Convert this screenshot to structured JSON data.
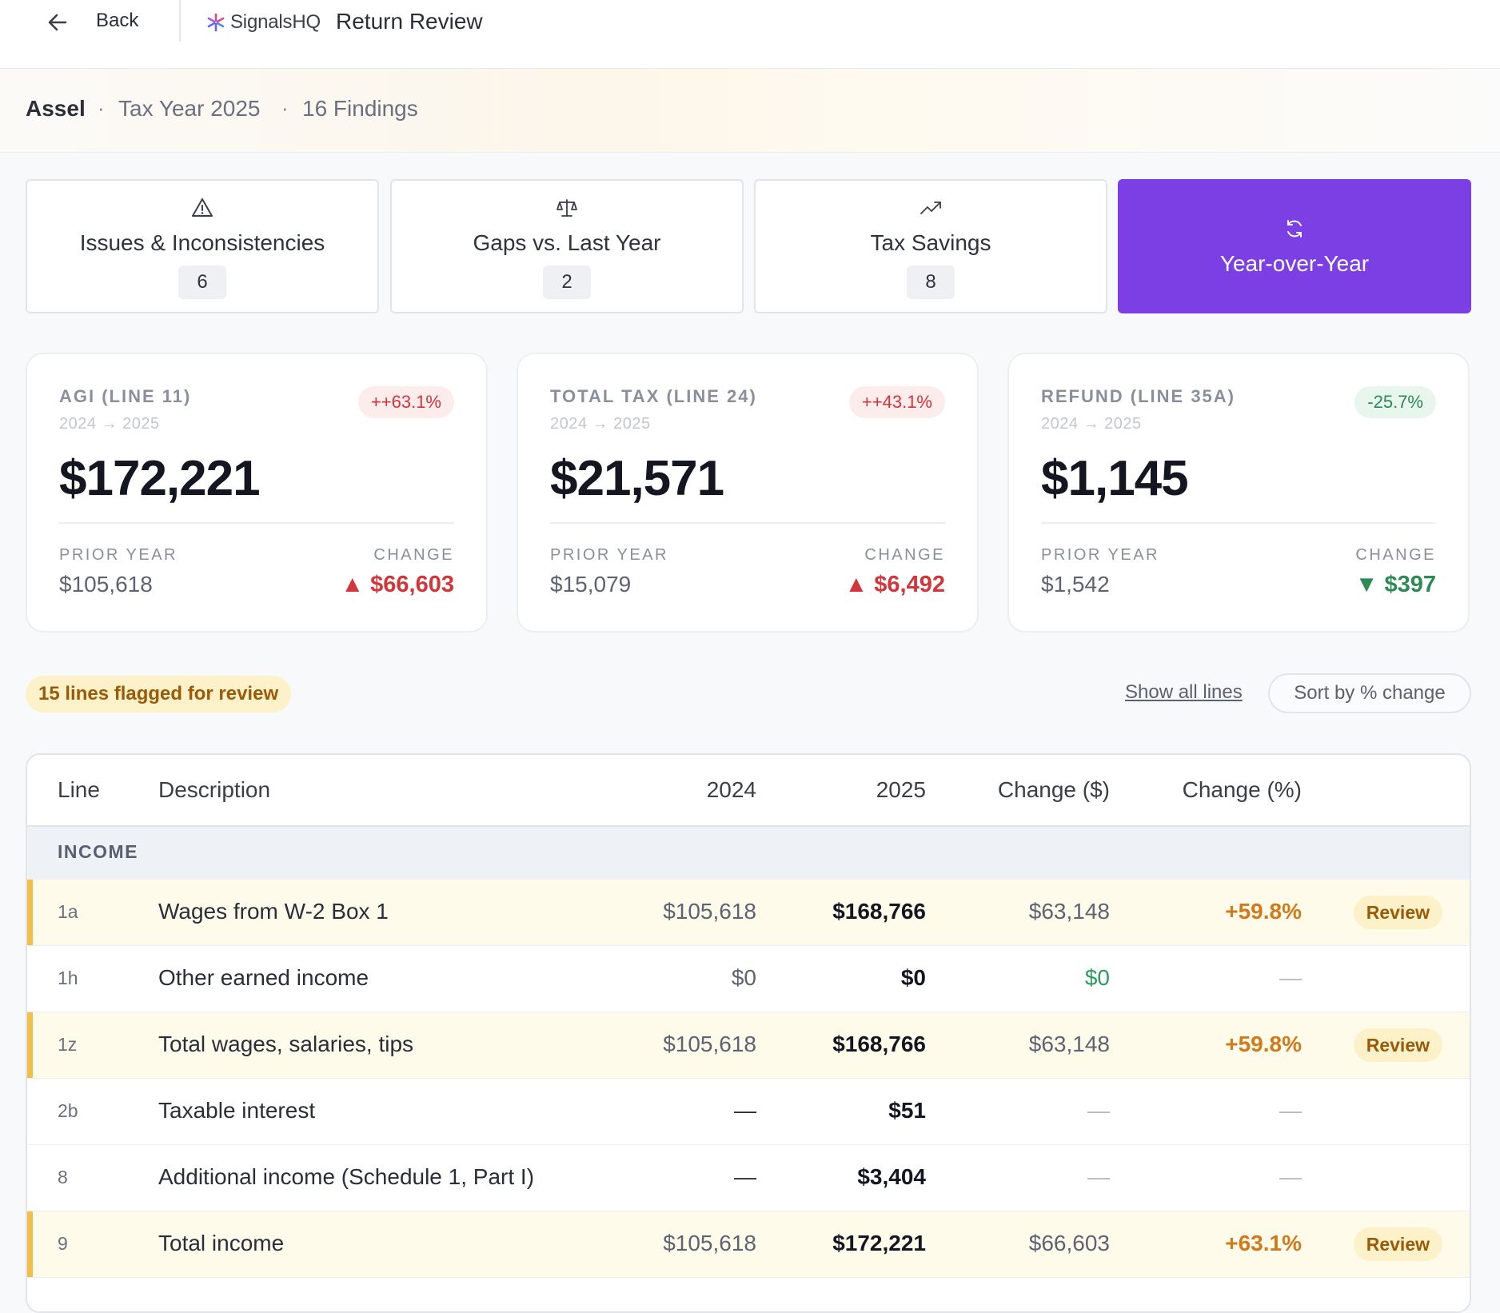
{
  "header": {
    "back_label": "Back",
    "brand": "SignalsHQ",
    "title": "Return Review"
  },
  "subheader": {
    "client": "Assel",
    "separator": "·",
    "tax_year": "Tax Year 2025",
    "findings": "16 Findings"
  },
  "tabs": [
    {
      "label": "Issues & Inconsistencies",
      "count": "6",
      "icon": "warning-icon"
    },
    {
      "label": "Gaps vs. Last Year",
      "count": "2",
      "icon": "scale-icon"
    },
    {
      "label": "Tax Savings",
      "count": "8",
      "icon": "trend-up-icon"
    },
    {
      "label": "Year-over-Year",
      "count": "",
      "icon": "refresh-icon",
      "active": true
    }
  ],
  "metrics": [
    {
      "label": "AGI (LINE 11)",
      "range": "2024 → 2025",
      "badge": "++63.1%",
      "value": "$172,221",
      "prior_label": "PRIOR YEAR",
      "prior": "$105,618",
      "change_label": "CHANGE",
      "change": "▲ $66,603",
      "direction": "up"
    },
    {
      "label": "TOTAL TAX (LINE 24)",
      "range": "2024 → 2025",
      "badge": "++43.1%",
      "value": "$21,571",
      "prior_label": "PRIOR YEAR",
      "prior": "$15,079",
      "change_label": "CHANGE",
      "change": "▲ $6,492",
      "direction": "up"
    },
    {
      "label": "REFUND (LINE 35A)",
      "range": "2024 → 2025",
      "badge": "-25.7%",
      "value": "$1,145",
      "prior_label": "PRIOR YEAR",
      "prior": "$1,542",
      "change_label": "CHANGE",
      "change": "▼ $397",
      "direction": "down"
    }
  ],
  "controls": {
    "flag_summary": "15 lines flagged for review",
    "show_all": "Show all lines",
    "sort": "Sort by % change"
  },
  "table": {
    "headers": {
      "line": "Line",
      "description": "Description",
      "y2024": "2024",
      "y2025": "2025",
      "change_usd": "Change ($)",
      "change_pct": "Change (%)"
    },
    "section": "INCOME",
    "rows": [
      {
        "line": "1a",
        "description": "Wages from W-2 Box 1",
        "y2024": "$105,618",
        "y2025": "$168,766",
        "change_usd": "$63,148",
        "change_pct": "+59.8%",
        "review": "Review",
        "flagged": true
      },
      {
        "line": "1h",
        "description": "Other earned income",
        "y2024": "$0",
        "y2025": "$0",
        "change_usd": "$0",
        "change_pct": "—",
        "review": "",
        "flagged": false
      },
      {
        "line": "1z",
        "description": "Total wages, salaries, tips",
        "y2024": "$105,618",
        "y2025": "$168,766",
        "change_usd": "$63,148",
        "change_pct": "+59.8%",
        "review": "Review",
        "flagged": true
      },
      {
        "line": "2b",
        "description": "Taxable interest",
        "y2024": "—",
        "y2025": "$51",
        "change_usd": "—",
        "change_pct": "—",
        "review": "",
        "flagged": false
      },
      {
        "line": "8",
        "description": "Additional income (Schedule 1, Part I)",
        "y2024": "—",
        "y2025": "$3,404",
        "change_usd": "—",
        "change_pct": "—",
        "review": "",
        "flagged": false
      },
      {
        "line": "9",
        "description": "Total income",
        "y2024": "$105,618",
        "y2025": "$172,221",
        "change_usd": "$66,603",
        "change_pct": "+63.1%",
        "review": "Review",
        "flagged": true
      }
    ]
  }
}
